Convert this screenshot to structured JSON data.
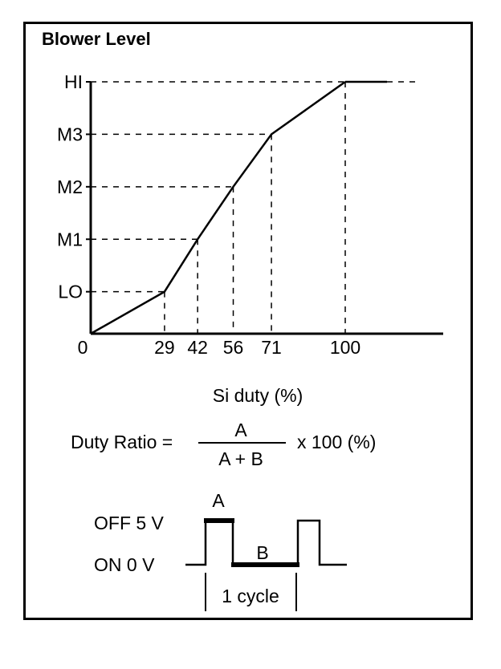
{
  "chart_data": {
    "type": "line",
    "title": "Blower Level",
    "xlabel": "Si duty (%)",
    "ylabel": "",
    "origin_label": "0",
    "x_ticks": [
      "29",
      "42",
      "56",
      "71",
      "100"
    ],
    "y_levels": [
      "LO",
      "M1",
      "M2",
      "M3",
      "HI"
    ],
    "points": [
      {
        "x": 0,
        "y": "0"
      },
      {
        "x": 29,
        "y": "LO"
      },
      {
        "x": 42,
        "y": "M1"
      },
      {
        "x": 56,
        "y": "M2"
      },
      {
        "x": 71,
        "y": "M3"
      },
      {
        "x": 100,
        "y": "HI"
      }
    ],
    "xlim": [
      0,
      100
    ],
    "grid": false
  },
  "formula": {
    "lhs": "Duty Ratio =",
    "numerator": "A",
    "denominator": "A + B",
    "rhs": "x 100 (%)"
  },
  "waveform": {
    "high_label": "OFF 5 V",
    "low_label": "ON 0 V",
    "pulse_label": "A",
    "gap_label": "B",
    "cycle_label": "1 cycle"
  },
  "colors": {
    "ink": "#000000",
    "background": "#ffffff"
  }
}
